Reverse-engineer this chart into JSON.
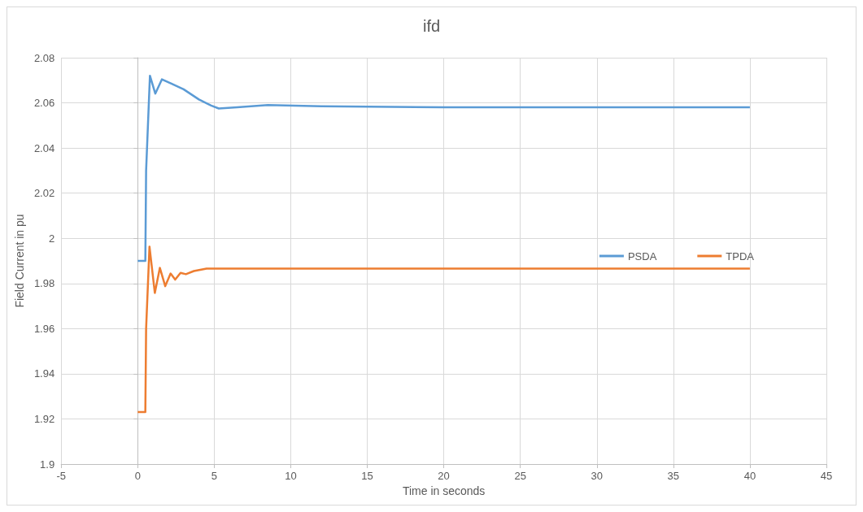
{
  "chart_data": {
    "type": "line",
    "title": "ifd",
    "xlabel": "Time in seconds",
    "ylabel": "Field Current in pu",
    "xlim": [
      -5,
      45
    ],
    "xticks": [
      -5,
      0,
      5,
      10,
      15,
      20,
      25,
      30,
      35,
      40,
      45
    ],
    "ylim": [
      1.9,
      2.08
    ],
    "yticks": [
      1.9,
      1.92,
      1.94,
      1.96,
      1.98,
      2,
      2.02,
      2.04,
      2.06,
      2.08
    ],
    "grid": true,
    "legend": "right",
    "marker": "none",
    "line_style": "solid",
    "series": [
      {
        "name": "PSDA",
        "color": "#5b9bd5",
        "x": [
          0,
          0.5,
          0.55,
          0.8,
          1.15,
          1.58,
          2.2,
          3,
          4,
          4.8,
          5.3,
          6.5,
          8.5,
          12,
          20,
          40
        ],
        "values": [
          1.99,
          1.99,
          2.03,
          2.072,
          2.0641,
          2.0704,
          2.0685,
          2.066,
          2.0615,
          2.0588,
          2.0575,
          2.058,
          2.059,
          2.0585,
          2.058,
          2.058
        ]
      },
      {
        "name": "TPDA",
        "color": "#ed7d31",
        "x": [
          0,
          0.5,
          0.55,
          0.77,
          1.12,
          1.45,
          1.8,
          2.15,
          2.45,
          2.8,
          3.15,
          3.67,
          4.5,
          10,
          40
        ],
        "values": [
          1.923,
          1.923,
          1.96,
          1.9963,
          1.9758,
          1.9869,
          1.9788,
          1.9844,
          1.9817,
          1.9847,
          1.9841,
          1.9855,
          1.9866,
          1.9866,
          1.9866
        ]
      }
    ]
  }
}
